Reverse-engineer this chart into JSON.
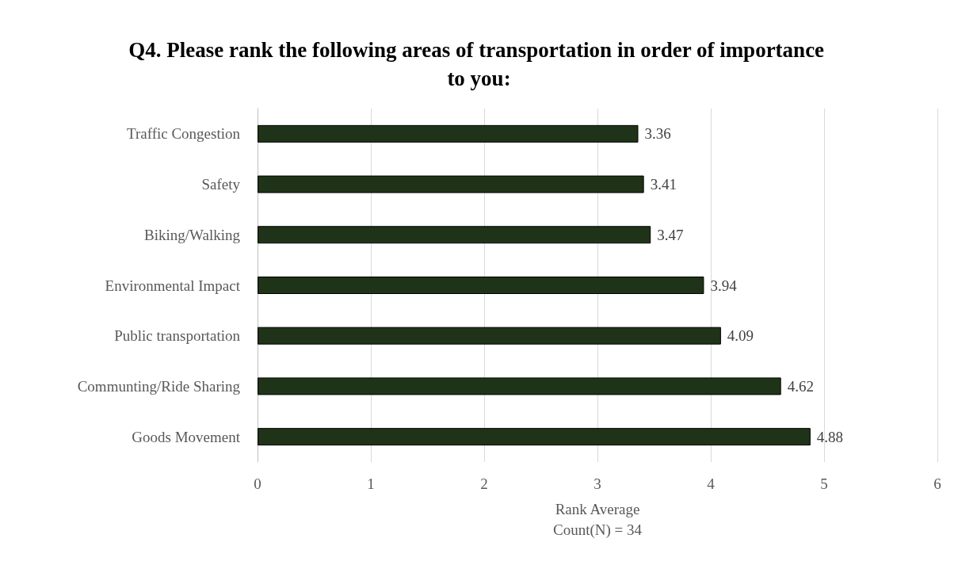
{
  "chart_data": {
    "type": "bar",
    "orientation": "horizontal",
    "title": "Q4. Please rank the following areas of transportation in order of importance to you:",
    "categories": [
      "Traffic Congestion",
      "Safety",
      "Biking/Walking",
      "Environmental Impact",
      "Public transportation",
      "Communting/Ride Sharing",
      "Goods Movement"
    ],
    "values": [
      3.36,
      3.41,
      3.47,
      3.94,
      4.09,
      4.62,
      4.88
    ],
    "color": "#1f3318",
    "xlim": [
      0,
      6
    ],
    "xticks": [
      0,
      1,
      2,
      3,
      4,
      5,
      6
    ],
    "xlabel": "Rank Average",
    "annotations": [
      "Count(N) = 34"
    ],
    "grid": "x",
    "data_labels": true
  }
}
